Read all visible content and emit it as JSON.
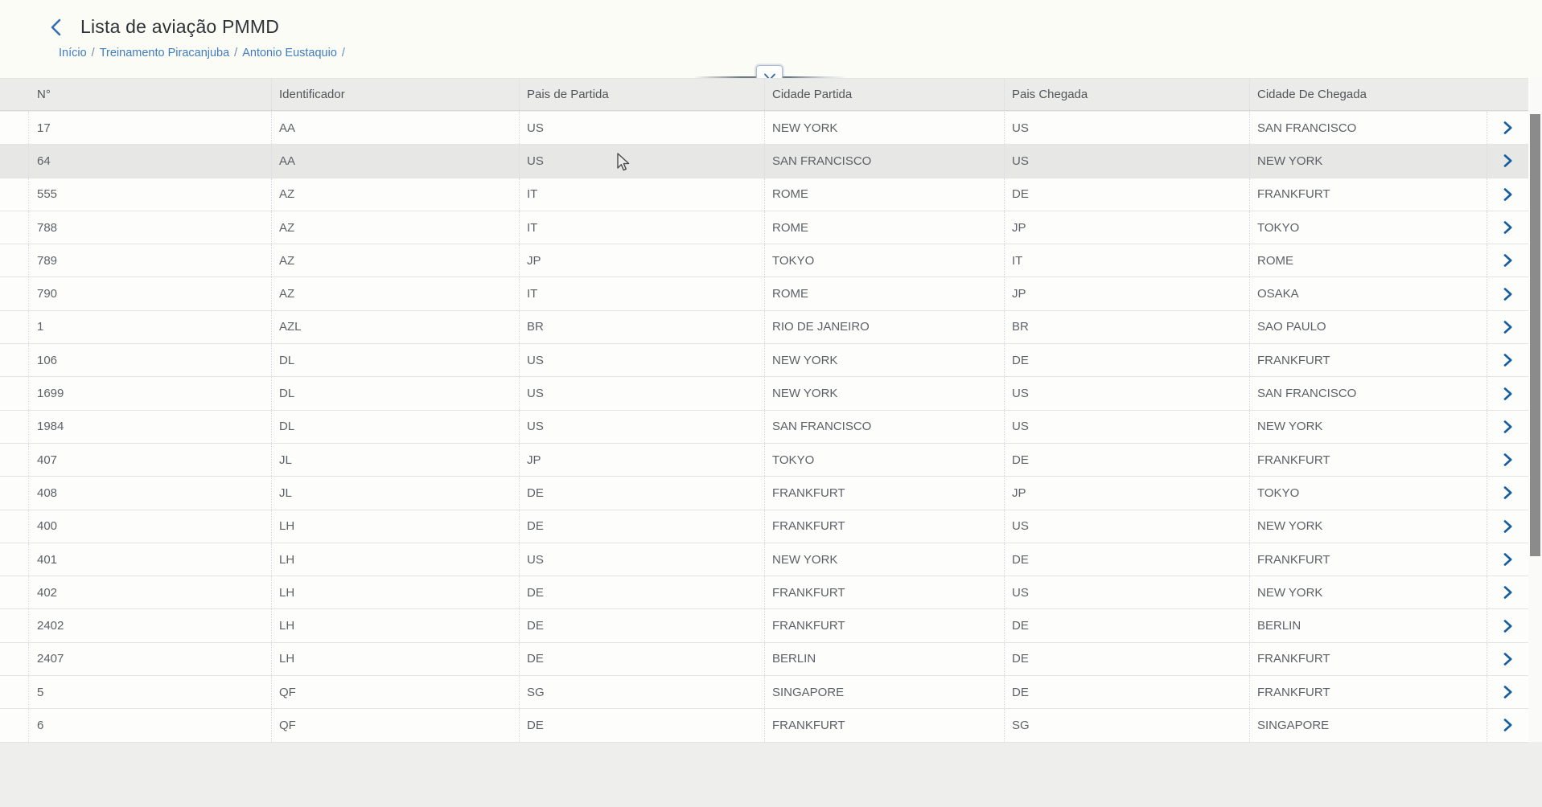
{
  "page": {
    "title": "Lista de aviação PMMD",
    "back_icon": "chevron-left",
    "collapse_icon": "chevron-down",
    "breadcrumb": {
      "items": [
        "Início",
        "Treinamento Piracanjuba",
        "Antonio Eustaquio"
      ],
      "separator": "/"
    }
  },
  "table": {
    "columns": [
      "N°",
      "Identificador",
      "Pais de Partida",
      "Cidade Partida",
      "Pais Chegada",
      "Cidade De Chegada"
    ],
    "row_action_icon": "chevron-right",
    "hovered_row_index": 1,
    "rows": [
      [
        "17",
        "AA",
        "US",
        "NEW YORK",
        "US",
        "SAN FRANCISCO"
      ],
      [
        "64",
        "AA",
        "US",
        "SAN FRANCISCO",
        "US",
        "NEW YORK"
      ],
      [
        "555",
        "AZ",
        "IT",
        "ROME",
        "DE",
        "FRANKFURT"
      ],
      [
        "788",
        "AZ",
        "IT",
        "ROME",
        "JP",
        "TOKYO"
      ],
      [
        "789",
        "AZ",
        "JP",
        "TOKYO",
        "IT",
        "ROME"
      ],
      [
        "790",
        "AZ",
        "IT",
        "ROME",
        "JP",
        "OSAKA"
      ],
      [
        "1",
        "AZL",
        "BR",
        "RIO DE JANEIRO",
        "BR",
        "SAO PAULO"
      ],
      [
        "106",
        "DL",
        "US",
        "NEW YORK",
        "DE",
        "FRANKFURT"
      ],
      [
        "1699",
        "DL",
        "US",
        "NEW YORK",
        "US",
        "SAN FRANCISCO"
      ],
      [
        "1984",
        "DL",
        "US",
        "SAN FRANCISCO",
        "US",
        "NEW YORK"
      ],
      [
        "407",
        "JL",
        "JP",
        "TOKYO",
        "DE",
        "FRANKFURT"
      ],
      [
        "408",
        "JL",
        "DE",
        "FRANKFURT",
        "JP",
        "TOKYO"
      ],
      [
        "400",
        "LH",
        "DE",
        "FRANKFURT",
        "US",
        "NEW YORK"
      ],
      [
        "401",
        "LH",
        "US",
        "NEW YORK",
        "DE",
        "FRANKFURT"
      ],
      [
        "402",
        "LH",
        "DE",
        "FRANKFURT",
        "US",
        "NEW YORK"
      ],
      [
        "2402",
        "LH",
        "DE",
        "FRANKFURT",
        "DE",
        "BERLIN"
      ],
      [
        "2407",
        "LH",
        "DE",
        "BERLIN",
        "DE",
        "FRANKFURT"
      ],
      [
        "5",
        "QF",
        "SG",
        "SINGAPORE",
        "DE",
        "FRANKFURT"
      ],
      [
        "6",
        "QF",
        "DE",
        "FRANKFURT",
        "SG",
        "SINGAPORE"
      ]
    ]
  },
  "colors": {
    "link_blue": "#3f7cbf",
    "chevron_blue": "#155fa0",
    "title_text": "#2f3338",
    "header_bg": "#ebebe9",
    "row_hover_bg": "#e7e7e5",
    "scroll_thumb": "#8b8b8b"
  }
}
